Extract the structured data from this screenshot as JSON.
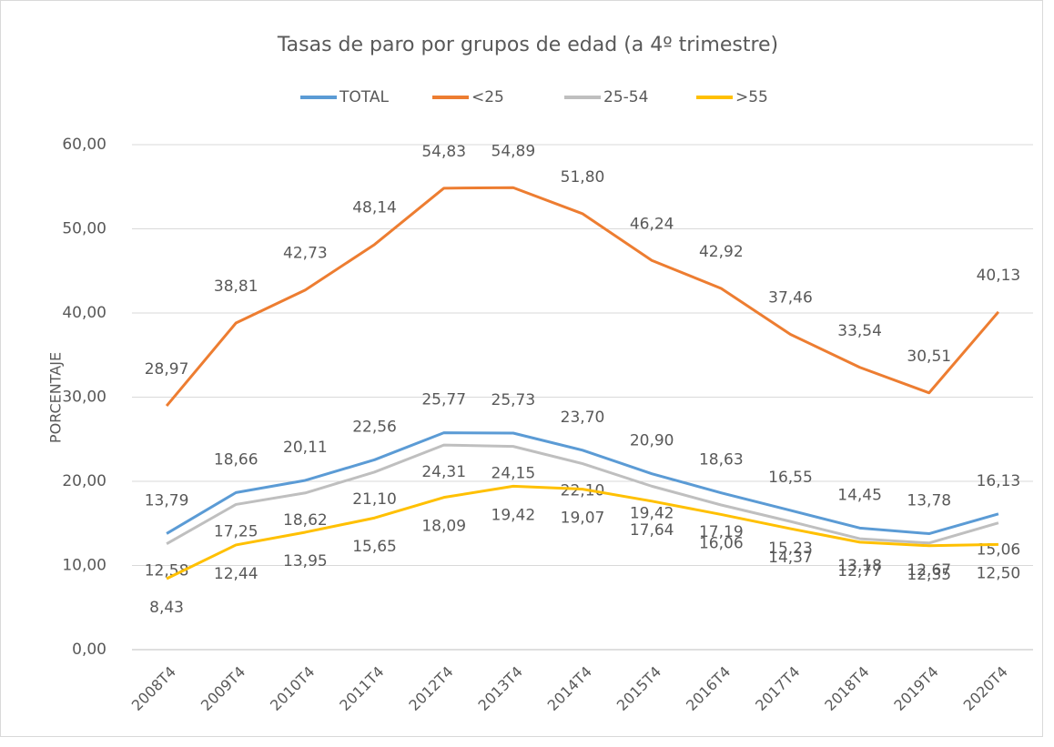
{
  "chart_data": {
    "type": "line",
    "title": "Tasas de paro por grupos de edad (a 4º trimestre)",
    "y_label": "PORCENTAJE",
    "categories": [
      "2008T4",
      "2009T4",
      "2010T4",
      "2011T4",
      "2012T4",
      "2013T4",
      "2014T4",
      "2015T4",
      "2016T4",
      "2017T4",
      "2018T4",
      "2019T4",
      "2020T4"
    ],
    "series": [
      {
        "name": "TOTAL",
        "color": "#5b9bd5",
        "values": [
          13.79,
          18.66,
          20.11,
          22.56,
          25.77,
          25.73,
          23.7,
          20.9,
          18.63,
          16.55,
          14.45,
          13.78,
          16.13
        ],
        "value_labels": [
          "13,79",
          "18,66",
          "20,11",
          "22,56",
          "25,77",
          "25,73",
          "23,70",
          "20,90",
          "18,63",
          "16,55",
          "14,45",
          "13,78",
          "16,13"
        ]
      },
      {
        "name": "<25",
        "color": "#ed7d31",
        "values": [
          28.97,
          38.81,
          42.73,
          48.14,
          54.83,
          54.89,
          51.8,
          46.24,
          42.92,
          37.46,
          33.54,
          30.51,
          40.13
        ],
        "value_labels": [
          "28,97",
          "38,81",
          "42,73",
          "48,14",
          "54,83",
          "54,89",
          "51,80",
          "46,24",
          "42,92",
          "37,46",
          "33,54",
          "30,51",
          "40,13"
        ]
      },
      {
        "name": "25-54",
        "color": "#bfbfbf",
        "values": [
          12.58,
          17.25,
          18.62,
          21.1,
          24.31,
          24.15,
          22.1,
          19.42,
          17.19,
          15.23,
          13.18,
          12.67,
          15.06
        ],
        "value_labels": [
          "12,58",
          "17,25",
          "18,62",
          "21,10",
          "24,31",
          "24,15",
          "22,10",
          "19,42",
          "17,19",
          "15,23",
          "13,18",
          "12,67",
          "15,06"
        ]
      },
      {
        "name": ">55",
        "color": "#ffc000",
        "values": [
          8.43,
          12.44,
          13.95,
          15.65,
          18.09,
          19.42,
          19.07,
          17.64,
          16.06,
          14.37,
          12.77,
          12.35,
          12.5
        ],
        "value_labels": [
          "8,43",
          "12,44",
          "13,95",
          "15,65",
          "18,09",
          "19,42",
          "19,07",
          "17,64",
          "16,06",
          "14,37",
          "12,77",
          "12,35",
          "12,50"
        ]
      }
    ],
    "ylim": [
      0,
      60
    ],
    "yticks": [
      {
        "value": 0,
        "label": "0,00"
      },
      {
        "value": 10,
        "label": "10,00"
      },
      {
        "value": 20,
        "label": "20,00"
      },
      {
        "value": 30,
        "label": "30,00"
      },
      {
        "value": 40,
        "label": "40,00"
      },
      {
        "value": 50,
        "label": "50,00"
      },
      {
        "value": 60,
        "label": "60,00"
      }
    ],
    "grid": true,
    "legend": "top"
  }
}
